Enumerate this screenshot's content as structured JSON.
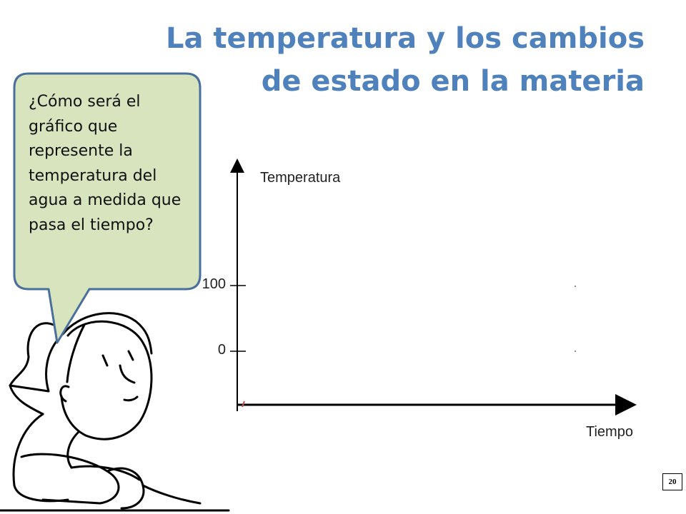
{
  "slide": {
    "title": "La temperatura y los cambios de estado en la materia",
    "bubble_text": "¿Cómo será el gráfico que represente la temperatura del agua a medida que pasa el tiempo?",
    "slide_number": "20"
  },
  "chart_data": {
    "type": "line",
    "title": "",
    "xlabel": "Tiempo",
    "ylabel": "Temperatura",
    "y_ticks": [
      {
        "value": 0,
        "label": "0"
      },
      {
        "value": 100,
        "label": "100"
      }
    ],
    "series": [],
    "grid": false,
    "legend": "none"
  },
  "colors": {
    "title": "#4f81bd",
    "bubble_fill": "#d7e4bd",
    "bubble_stroke": "#4a6f9c"
  }
}
